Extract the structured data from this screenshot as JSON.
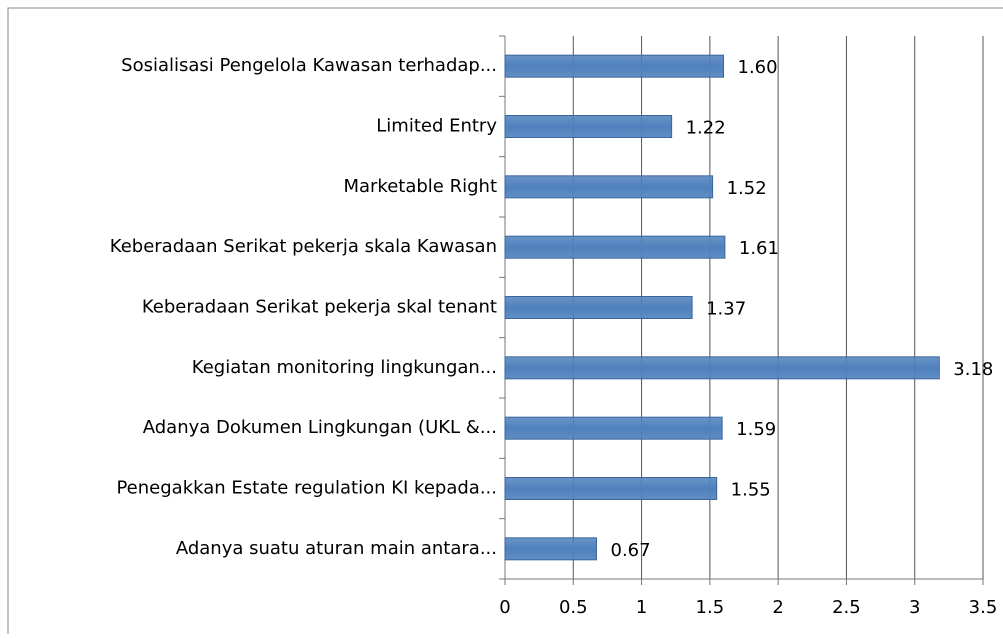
{
  "chart_data": {
    "type": "bar",
    "orientation": "horizontal",
    "categories": [
      "Sosialisasi Pengelola Kawasan terhadap...",
      "Limited Entry",
      "Marketable Right",
      "Keberadaan Serikat pekerja skala Kawasan",
      "Keberadaan Serikat pekerja skal tenant",
      "Kegiatan monitoring lingkungan...",
      "Adanya Dokumen Lingkungan (UKL &...",
      "Penegakkan Estate regulation KI kepada...",
      "Adanya suatu aturan main antara..."
    ],
    "values": [
      1.6,
      1.22,
      1.52,
      1.61,
      1.37,
      3.18,
      1.59,
      1.55,
      0.67
    ],
    "value_labels": [
      "1.60",
      "1.22",
      "1.52",
      "1.61",
      "1.37",
      "3.18",
      "1.59",
      "1.55",
      "0.67"
    ],
    "color": "#4f81bd",
    "xlim": [
      0,
      3.5
    ],
    "xticks": [
      0,
      0.5,
      1,
      1.5,
      2,
      2.5,
      3,
      3.5
    ],
    "grid": true
  }
}
